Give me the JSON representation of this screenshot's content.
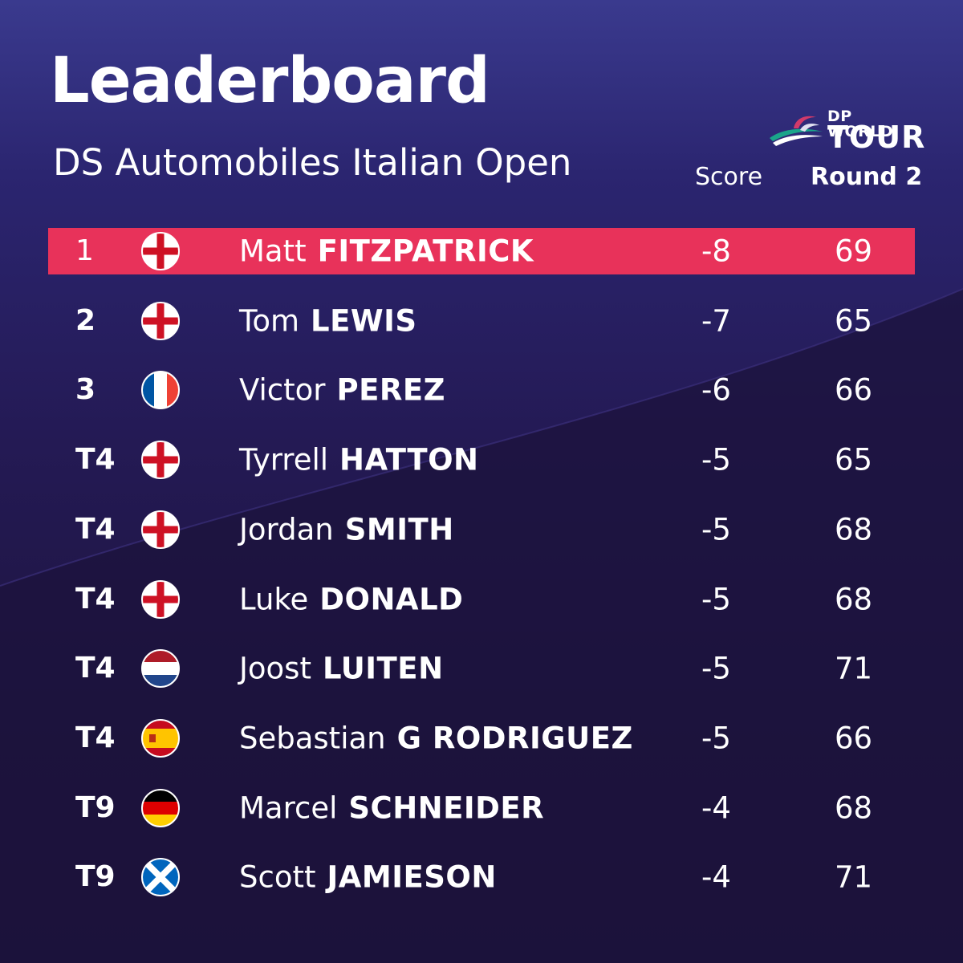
{
  "header": {
    "title": "Leaderboard",
    "subtitle": "DS Automobiles Italian Open",
    "logo_top": "DP WORLD",
    "logo_bottom": "TOUR",
    "col_score": "Score",
    "col_round": "Round 2"
  },
  "colors": {
    "highlight": "#e8325a",
    "background": "#241a55",
    "text": "#ffffff"
  },
  "rows": [
    {
      "pos": "1",
      "flag": "england",
      "first": "Matt",
      "last": "FITZPATRICK",
      "score": "-8",
      "round": "69",
      "leader": true
    },
    {
      "pos": "2",
      "flag": "england",
      "first": "Tom",
      "last": "LEWIS",
      "score": "-7",
      "round": "65"
    },
    {
      "pos": "3",
      "flag": "france",
      "first": "Victor",
      "last": "PEREZ",
      "score": "-6",
      "round": "66"
    },
    {
      "pos": "T4",
      "flag": "england",
      "first": "Tyrrell",
      "last": "HATTON",
      "score": "-5",
      "round": "65"
    },
    {
      "pos": "T4",
      "flag": "england",
      "first": "Jordan",
      "last": "SMITH",
      "score": "-5",
      "round": "68"
    },
    {
      "pos": "T4",
      "flag": "england",
      "first": "Luke",
      "last": "DONALD",
      "score": "-5",
      "round": "68"
    },
    {
      "pos": "T4",
      "flag": "netherlands",
      "first": "Joost",
      "last": "LUITEN",
      "score": "-5",
      "round": "71"
    },
    {
      "pos": "T4",
      "flag": "spain",
      "first": "Sebastian",
      "last": "G RODRIGUEZ",
      "score": "-5",
      "round": "66"
    },
    {
      "pos": "T9",
      "flag": "germany",
      "first": "Marcel",
      "last": "SCHNEIDER",
      "score": "-4",
      "round": "68"
    },
    {
      "pos": "T9",
      "flag": "scotland",
      "first": "Scott",
      "last": "JAMIESON",
      "score": "-4",
      "round": "71"
    }
  ]
}
